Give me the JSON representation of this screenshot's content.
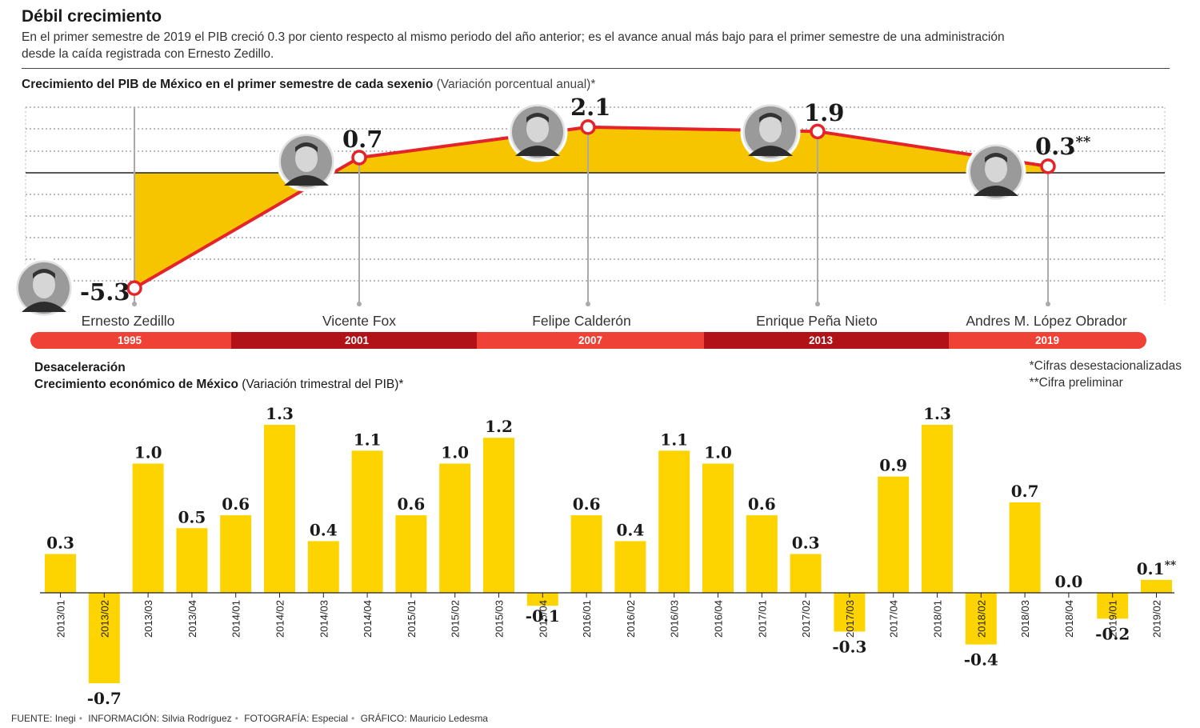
{
  "header": {
    "title": "Débil crecimiento",
    "subtitle_line1": "En el primer semestre de 2019 el PIB creció 0.3 por ciento respecto al mismo periodo del año anterior; es el avance anual más bajo para el primer semestre de una administración",
    "subtitle_line2": "desde la caída registrada con Ernesto Zedillo."
  },
  "section1": {
    "title": "Crecimiento del PIB de México en el primer semestre de cada sexenio",
    "title_note": "(Variación porcentual anual)*"
  },
  "section2": {
    "kicker": "Desaceleración",
    "title": "Crecimiento económico de México",
    "title_note": "(Variación trimestral del PIB)*"
  },
  "notes": {
    "line1": "*Cifras desestacionalizadas",
    "line2": "**Cifra preliminar"
  },
  "footer": {
    "source_label": "FUENTE:",
    "source": "Inegi",
    "info_label": "INFORMACIÓN:",
    "info": "Silvia Rodríguez",
    "photo_label": "FOTOGRAFÍA:",
    "photo": "Especial",
    "graphic_label": "GRÁFICO:",
    "graphic": "Mauricio Ledesma"
  },
  "colors": {
    "line": "#e5232b",
    "area": "#f7c500",
    "bar": "#fdd400",
    "timeline_light": "#ef4136",
    "timeline_dark": "#b01218",
    "grid": "#777777"
  },
  "chart_data": [
    {
      "type": "line",
      "title": "Crecimiento del PIB de México en el primer semestre de cada sexenio",
      "ylabel": "Variación porcentual anual",
      "categories": [
        "1995",
        "2001",
        "2007",
        "2013",
        "2019"
      ],
      "presidents": [
        "Ernesto Zedillo",
        "Vicente Fox",
        "Felipe Calderón",
        "Enrique Peña Nieto",
        "Andres M. López Obrador"
      ],
      "values": [
        -5.3,
        0.7,
        2.1,
        1.9,
        0.3
      ],
      "value_labels": [
        "-5.3",
        "0.7",
        "2.1",
        "1.9",
        "0.3"
      ],
      "preliminary_mark": "**",
      "ylim": [
        -5.6,
        2.6
      ],
      "grid": true
    },
    {
      "type": "bar",
      "title": "Crecimiento económico de México",
      "ylabel": "Variación trimestral del PIB",
      "categories": [
        "2013/01",
        "2013/02",
        "2013/03",
        "2013/04",
        "2014/01",
        "2014/02",
        "2014/03",
        "2014/04",
        "2015/01",
        "2015/02",
        "2015/03",
        "2015/04",
        "2016/01",
        "2016/02",
        "2016/03",
        "2016/04",
        "2017/01",
        "2017/02",
        "2017/03",
        "2017/04",
        "2018/01",
        "2018/02",
        "2018/03",
        "2018/04",
        "2019/01",
        "2019/02"
      ],
      "values": [
        0.3,
        -0.7,
        1.0,
        0.5,
        0.6,
        1.3,
        0.4,
        1.1,
        0.6,
        1.0,
        1.2,
        -0.1,
        0.6,
        0.4,
        1.1,
        1.0,
        0.6,
        0.3,
        -0.3,
        0.9,
        1.3,
        -0.4,
        0.7,
        0.0,
        -0.2,
        0.1
      ],
      "value_labels": [
        "0.3",
        "-0.7",
        "1.0",
        "0.5",
        "0.6",
        "1.3",
        "0.4",
        "1.1",
        "0.6",
        "1.0",
        "1.2",
        "-0.1",
        "0.6",
        "0.4",
        "1.1",
        "1.0",
        "0.6",
        "0.3",
        "-0.3",
        "0.9",
        "1.3",
        "-0.4",
        "0.7",
        "0.0",
        "-0.2",
        "0.1"
      ],
      "preliminary_mark": "**",
      "ylim": [
        -0.7,
        1.3
      ],
      "grid": false
    }
  ]
}
